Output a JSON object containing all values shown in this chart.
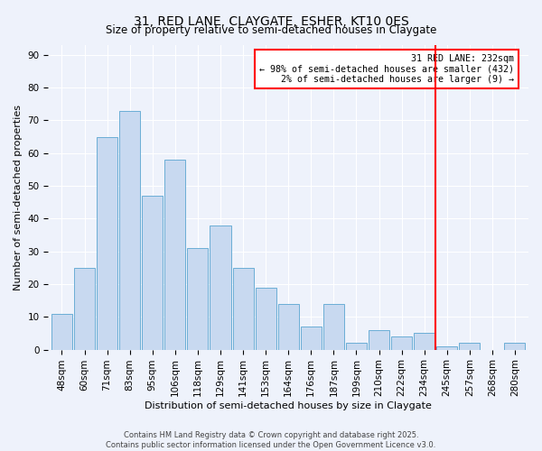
{
  "title": "31, RED LANE, CLAYGATE, ESHER, KT10 0ES",
  "subtitle": "Size of property relative to semi-detached houses in Claygate",
  "xlabel": "Distribution of semi-detached houses by size in Claygate",
  "ylabel": "Number of semi-detached properties",
  "bar_labels": [
    "48sqm",
    "60sqm",
    "71sqm",
    "83sqm",
    "95sqm",
    "106sqm",
    "118sqm",
    "129sqm",
    "141sqm",
    "153sqm",
    "164sqm",
    "176sqm",
    "187sqm",
    "199sqm",
    "210sqm",
    "222sqm",
    "234sqm",
    "245sqm",
    "257sqm",
    "268sqm",
    "280sqm"
  ],
  "bar_values": [
    11,
    25,
    65,
    73,
    47,
    58,
    31,
    38,
    25,
    19,
    14,
    7,
    14,
    2,
    6,
    4,
    5,
    1,
    2,
    0,
    2
  ],
  "bar_color": "#c8d9f0",
  "bar_edge_color": "#6baed6",
  "ylim": [
    0,
    93
  ],
  "yticks": [
    0,
    10,
    20,
    30,
    40,
    50,
    60,
    70,
    80,
    90
  ],
  "vline_x_index": 16,
  "vline_color": "red",
  "annotation_title": "31 RED LANE: 232sqm",
  "annotation_line1": "← 98% of semi-detached houses are smaller (432)",
  "annotation_line2": "2% of semi-detached houses are larger (9) →",
  "footer_line1": "Contains HM Land Registry data © Crown copyright and database right 2025.",
  "footer_line2": "Contains public sector information licensed under the Open Government Licence v3.0.",
  "bg_color": "#eef2fb",
  "grid_color": "#ffffff",
  "title_fontsize": 10,
  "axis_label_fontsize": 8,
  "tick_fontsize": 7.5
}
